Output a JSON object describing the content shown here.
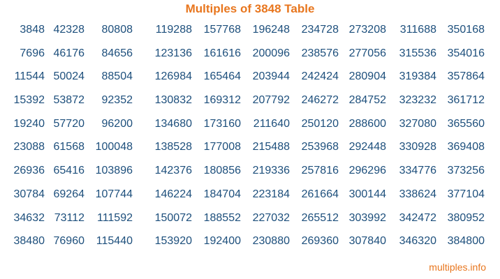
{
  "title": "Multiples of 3848 Table",
  "footer": "multiples.info",
  "colors": {
    "title": "#e8761e",
    "numbers": "#1d4f7c",
    "footer": "#e8761e"
  },
  "rows": [
    [
      "3848",
      "42328",
      "80808",
      "119288",
      "157768",
      "196248",
      "234728",
      "273208",
      "311688",
      "350168"
    ],
    [
      "7696",
      "46176",
      "84656",
      "123136",
      "161616",
      "200096",
      "238576",
      "277056",
      "315536",
      "354016"
    ],
    [
      "11544",
      "50024",
      "88504",
      "126984",
      "165464",
      "203944",
      "242424",
      "280904",
      "319384",
      "357864"
    ],
    [
      "15392",
      "53872",
      "92352",
      "130832",
      "169312",
      "207792",
      "246272",
      "284752",
      "323232",
      "361712"
    ],
    [
      "19240",
      "57720",
      "96200",
      "134680",
      "173160",
      "211640",
      "250120",
      "288600",
      "327080",
      "365560"
    ],
    [
      "23088",
      "61568",
      "100048",
      "138528",
      "177008",
      "215488",
      "253968",
      "292448",
      "330928",
      "369408"
    ],
    [
      "26936",
      "65416",
      "103896",
      "142376",
      "180856",
      "219336",
      "257816",
      "296296",
      "334776",
      "373256"
    ],
    [
      "30784",
      "69264",
      "107744",
      "146224",
      "184704",
      "223184",
      "261664",
      "300144",
      "338624",
      "377104"
    ],
    [
      "34632",
      "73112",
      "111592",
      "150072",
      "188552",
      "227032",
      "265512",
      "303992",
      "342472",
      "380952"
    ],
    [
      "38480",
      "76960",
      "115440",
      "153920",
      "192400",
      "230880",
      "269360",
      "307840",
      "346320",
      "384800"
    ]
  ]
}
